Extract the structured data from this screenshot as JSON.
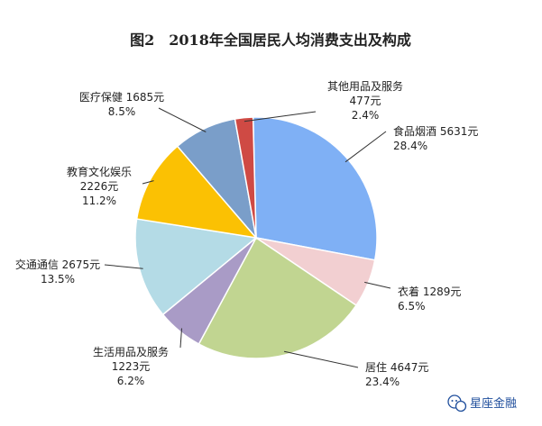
{
  "chart_data": {
    "type": "pie",
    "title": "图2　2018年全国居民人均消费支出及构成",
    "slices": [
      {
        "name": "食品烟酒",
        "value": 5631,
        "value_text": "5631元",
        "percent_text": "28.4%",
        "color": "#7fb0f5"
      },
      {
        "name": "衣着",
        "value": 1289,
        "value_text": "1289元",
        "percent_text": "6.5%",
        "color": "#f2cfd1"
      },
      {
        "name": "居住",
        "value": 4647,
        "value_text": "4647元",
        "percent_text": "23.4%",
        "color": "#c1d591"
      },
      {
        "name": "生活用品及服务",
        "value": 1223,
        "value_text": "1223元",
        "percent_text": "6.2%",
        "color": "#a99bc6"
      },
      {
        "name": "交通通信",
        "value": 2675,
        "value_text": "2675元",
        "percent_text": "13.5%",
        "color": "#b4dbe6"
      },
      {
        "name": "教育文化娱乐",
        "value": 2226,
        "value_text": "2226元",
        "percent_text": "11.2%",
        "color": "#fbc103"
      },
      {
        "name": "医疗保健",
        "value": 1685,
        "value_text": "1685元",
        "percent_text": "8.5%",
        "color": "#7a9ec9"
      },
      {
        "name": "其他用品及服务",
        "value": 477,
        "value_text": "477元",
        "percent_text": "2.4%",
        "color": "#cf4a44"
      }
    ]
  },
  "watermark": {
    "text": "星座金融",
    "icon": "wechat-icon"
  }
}
